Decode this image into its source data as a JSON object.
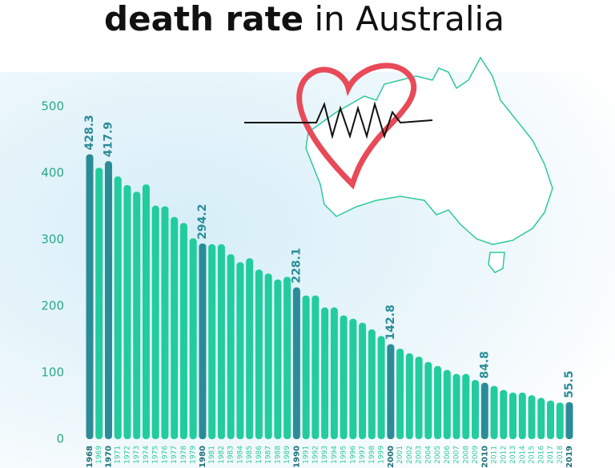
{
  "chart_data": {
    "type": "bar",
    "title_bold": "death rate",
    "title_rest": "in Australia",
    "categories": [
      "1968",
      "1969",
      "1970",
      "1971",
      "1972",
      "1973",
      "1974",
      "1975",
      "1976",
      "1977",
      "1978",
      "1979",
      "1980",
      "1981",
      "1982",
      "1983",
      "1984",
      "1985",
      "1986",
      "1987",
      "1988",
      "1989",
      "1990",
      "1991",
      "1992",
      "1993",
      "1994",
      "1995",
      "1996",
      "1997",
      "1998",
      "1999",
      "2000",
      "2001",
      "2002",
      "2003",
      "2004",
      "2005",
      "2006",
      "2007",
      "2008",
      "2009",
      "2010",
      "2011",
      "2012",
      "2013",
      "2014",
      "2015",
      "2016",
      "2017",
      "2018",
      "2019"
    ],
    "values": [
      428.3,
      408,
      417.9,
      395,
      382,
      372,
      383,
      351,
      350,
      334,
      325,
      302,
      294.2,
      293,
      293,
      278,
      266,
      272,
      255,
      249,
      240,
      244,
      228.1,
      216,
      216,
      198,
      198,
      186,
      181,
      175,
      165,
      155,
      142.8,
      136,
      129,
      124,
      116,
      110,
      104,
      98,
      98,
      89,
      84.8,
      80,
      74,
      70,
      70,
      66,
      62,
      58,
      55,
      55.5
    ],
    "value_labels": [
      "428.3",
      null,
      "417.9",
      null,
      null,
      null,
      null,
      null,
      null,
      null,
      null,
      null,
      "294.2",
      null,
      null,
      null,
      null,
      null,
      null,
      null,
      null,
      null,
      "228.1",
      null,
      null,
      null,
      null,
      null,
      null,
      null,
      null,
      null,
      "142.8",
      null,
      null,
      null,
      null,
      null,
      null,
      null,
      null,
      null,
      "84.8",
      null,
      null,
      null,
      null,
      null,
      null,
      null,
      null,
      "55.5"
    ],
    "color": "#22cc9c",
    "highlight_color": "#2b8c98",
    "ylim": [
      0,
      500
    ],
    "yticks": [
      0,
      100,
      200,
      300,
      400,
      500
    ],
    "grid": false
  }
}
